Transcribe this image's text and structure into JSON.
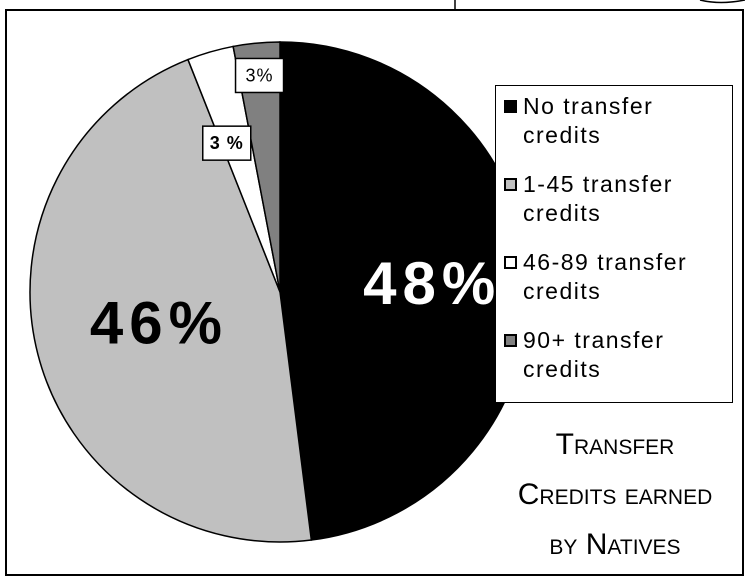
{
  "chart_data": {
    "type": "pie",
    "title": "Transfer Credits earned by Natives",
    "categories": [
      "No transfer credits",
      "1-45 transfer credits",
      "46-89 transfer credits",
      "90+ transfer credits"
    ],
    "values": [
      48,
      46,
      3,
      3
    ],
    "value_labels": [
      "48%",
      "46%",
      "3 %",
      "3%"
    ],
    "colors": [
      "#000000",
      "#c0c0c0",
      "#ffffff",
      "#808080"
    ],
    "legend": "right"
  }
}
